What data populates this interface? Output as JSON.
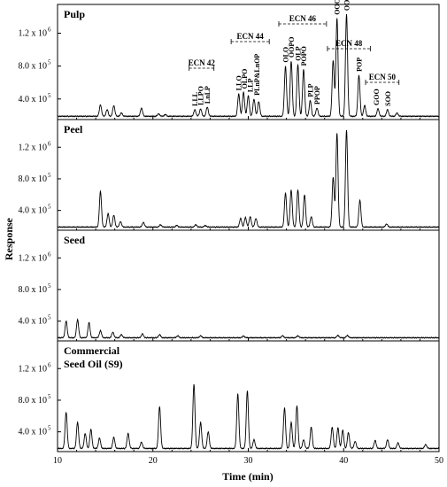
{
  "chart_data": {
    "type": "line",
    "xlabel": "Time (min)",
    "ylabel": "Response",
    "xlim": [
      10,
      50
    ],
    "x_ticks": [
      "10",
      "20",
      "30",
      "40",
      "50"
    ],
    "y_ticks": [
      "4.0 x 10",
      "8.0 x 10",
      "1.2 x 10"
    ],
    "y_tick_exponent": "5",
    "y_tick_exponent_top": "6",
    "y_tick_values": [
      400000,
      800000,
      1200000
    ],
    "ylim": [
      150000,
      1550000
    ],
    "baseline": 190000,
    "panels": [
      {
        "title_lines": [
          "Pulp"
        ],
        "peaks": [
          [
            14.5,
            330000
          ],
          [
            15.2,
            270000
          ],
          [
            15.9,
            320000
          ],
          [
            16.7,
            230000
          ],
          [
            18.8,
            290000
          ],
          [
            20.6,
            220000
          ],
          [
            21.3,
            210000
          ],
          [
            24.4,
            270000
          ],
          [
            25.0,
            280000
          ],
          [
            25.7,
            300000
          ],
          [
            29.0,
            460000
          ],
          [
            29.5,
            480000
          ],
          [
            30.0,
            440000
          ],
          [
            30.6,
            400000
          ],
          [
            31.1,
            370000
          ],
          [
            33.9,
            800000
          ],
          [
            34.5,
            860000
          ],
          [
            35.2,
            820000
          ],
          [
            35.8,
            760000
          ],
          [
            36.5,
            380000
          ],
          [
            37.2,
            290000
          ],
          [
            38.9,
            870000
          ],
          [
            39.3,
            1380000
          ],
          [
            40.3,
            1430000
          ],
          [
            41.6,
            690000
          ],
          [
            42.2,
            320000
          ],
          [
            43.6,
            280000
          ],
          [
            44.6,
            270000
          ],
          [
            45.6,
            230000
          ]
        ],
        "peak_labels": [
          {
            "text": "LLL",
            "x": 24.4
          },
          {
            "text": "LLPO",
            "x": 25.0
          },
          {
            "text": "LnLP",
            "x": 25.7
          },
          {
            "text": "LLO",
            "x": 29.0
          },
          {
            "text": "OLPO",
            "x": 29.6
          },
          {
            "text": "LLP",
            "x": 30.2
          },
          {
            "text": "PLnP&LnOP",
            "x": 30.9
          },
          {
            "text": "OLO",
            "x": 33.9
          },
          {
            "text": "OOPO",
            "x": 34.5
          },
          {
            "text": "OLP",
            "x": 35.2
          },
          {
            "text": "POPO",
            "x": 35.8
          },
          {
            "text": "PLP",
            "x": 36.5
          },
          {
            "text": "PPOP",
            "x": 37.2
          },
          {
            "text": "OOO",
            "x": 39.3
          },
          {
            "text": "OOP",
            "x": 40.3
          },
          {
            "text": "POP",
            "x": 41.6
          },
          {
            "text": "GOO",
            "x": 43.4
          },
          {
            "text": "SOO",
            "x": 44.6
          }
        ],
        "ecn_groups": [
          {
            "text": "ECN 42",
            "x1": 23.8,
            "x2": 26.4
          },
          {
            "text": "ECN 44",
            "x1": 28.2,
            "x2": 32.2
          },
          {
            "text": "ECN 46",
            "x1": 33.2,
            "x2": 38.2
          },
          {
            "text": "ECN 48",
            "x1": 38.3,
            "x2": 42.8
          },
          {
            "text": "ECN 50",
            "x1": 42.3,
            "x2": 45.8
          }
        ]
      },
      {
        "title_lines": [
          "Peel"
        ],
        "peaks": [
          [
            14.5,
            640000
          ],
          [
            15.3,
            360000
          ],
          [
            15.9,
            340000
          ],
          [
            16.6,
            260000
          ],
          [
            19.0,
            250000
          ],
          [
            20.8,
            220000
          ],
          [
            22.5,
            210000
          ],
          [
            24.5,
            220000
          ],
          [
            25.5,
            210000
          ],
          [
            29.2,
            300000
          ],
          [
            29.7,
            310000
          ],
          [
            30.2,
            320000
          ],
          [
            30.8,
            300000
          ],
          [
            33.9,
            620000
          ],
          [
            34.5,
            660000
          ],
          [
            35.2,
            660000
          ],
          [
            35.9,
            600000
          ],
          [
            36.6,
            320000
          ],
          [
            38.9,
            820000
          ],
          [
            39.3,
            1380000
          ],
          [
            40.3,
            1420000
          ],
          [
            41.7,
            530000
          ],
          [
            44.5,
            230000
          ]
        ]
      },
      {
        "title_lines": [
          "Seed"
        ],
        "peaks": [
          [
            10.9,
            400000
          ],
          [
            12.1,
            420000
          ],
          [
            13.3,
            380000
          ],
          [
            14.5,
            280000
          ],
          [
            15.8,
            260000
          ],
          [
            16.7,
            230000
          ],
          [
            18.9,
            240000
          ],
          [
            20.7,
            230000
          ],
          [
            22.6,
            215000
          ],
          [
            25.0,
            215000
          ],
          [
            29.5,
            212000
          ],
          [
            33.6,
            215000
          ],
          [
            35.2,
            215000
          ],
          [
            39.4,
            220000
          ],
          [
            40.4,
            220000
          ]
        ]
      },
      {
        "title_lines": [
          "Commercial",
          "Seed Oil (S9)"
        ],
        "peaks": [
          [
            10.9,
            650000
          ],
          [
            12.1,
            520000
          ],
          [
            12.9,
            380000
          ],
          [
            13.5,
            430000
          ],
          [
            14.4,
            320000
          ],
          [
            15.9,
            330000
          ],
          [
            17.4,
            380000
          ],
          [
            18.8,
            270000
          ],
          [
            20.7,
            720000
          ],
          [
            24.3,
            1000000
          ],
          [
            25.0,
            520000
          ],
          [
            25.8,
            400000
          ],
          [
            28.9,
            880000
          ],
          [
            29.9,
            920000
          ],
          [
            30.6,
            300000
          ],
          [
            33.8,
            700000
          ],
          [
            34.5,
            520000
          ],
          [
            35.1,
            730000
          ],
          [
            35.8,
            300000
          ],
          [
            36.6,
            460000
          ],
          [
            38.8,
            460000
          ],
          [
            39.4,
            450000
          ],
          [
            39.9,
            420000
          ],
          [
            40.5,
            390000
          ],
          [
            41.2,
            280000
          ],
          [
            43.3,
            290000
          ],
          [
            44.6,
            300000
          ],
          [
            45.7,
            260000
          ],
          [
            48.6,
            240000
          ]
        ]
      }
    ]
  }
}
